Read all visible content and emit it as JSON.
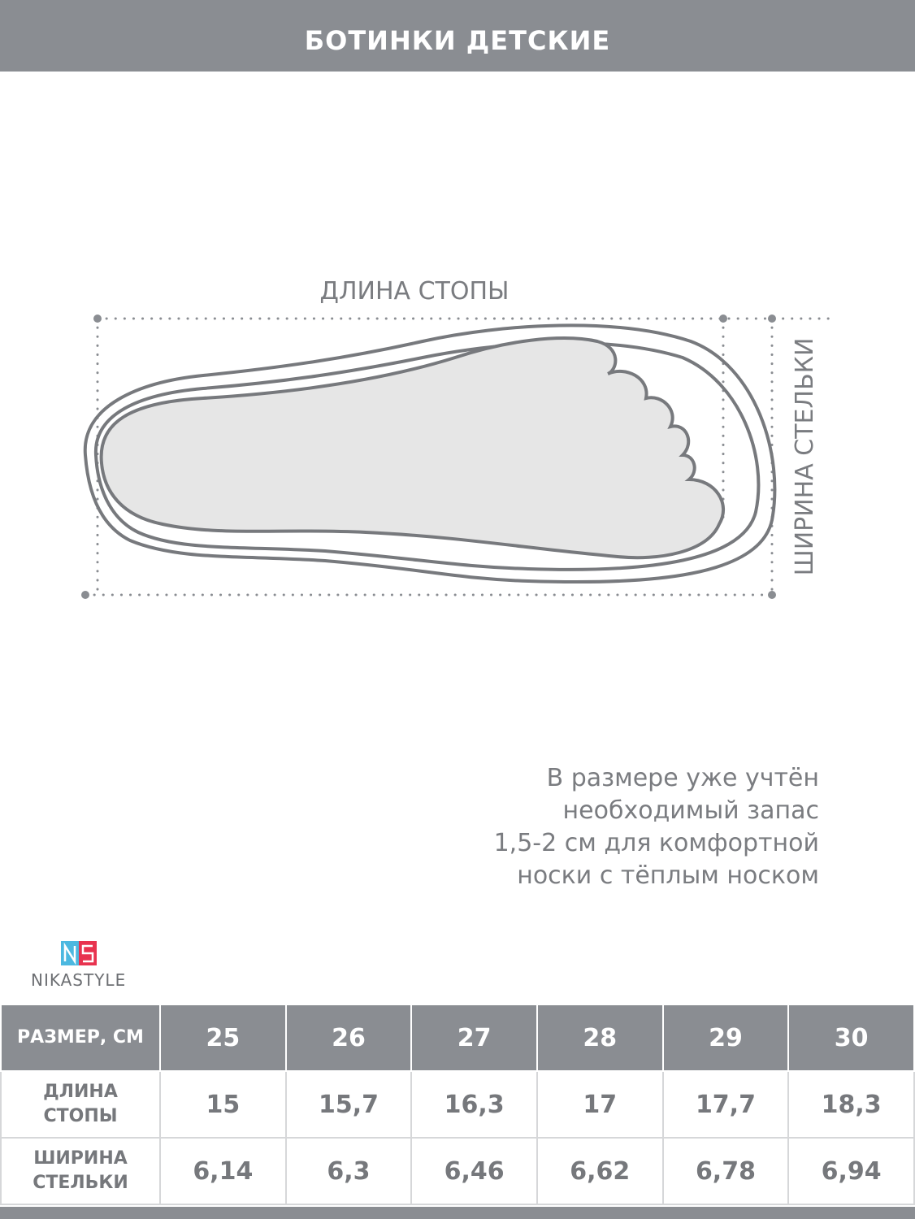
{
  "header": {
    "title": "БОТИНКИ ДЕТСКИЕ"
  },
  "diagram": {
    "length_label": "ДЛИНА СТОПЫ",
    "width_label": "ШИРИНА СТЕЛЬКИ"
  },
  "note": {
    "lines": [
      "В размере уже учтён",
      "необходимый запас",
      "1,5-2 см для комфортной",
      "носки с тёплым носком"
    ]
  },
  "logo": {
    "text": "NIKASTYLE"
  },
  "table": {
    "header": [
      "РАЗМЕР, СМ",
      "25",
      "26",
      "27",
      "28",
      "29",
      "30"
    ],
    "rows": [
      {
        "label": [
          "ДЛИНА",
          "СТОПЫ"
        ],
        "cells": [
          "15",
          "15,7",
          "16,3",
          "17",
          "17,7",
          "18,3"
        ]
      },
      {
        "label": [
          "ШИРИНА",
          "СТЕЛЬКИ"
        ],
        "cells": [
          "6,14",
          "6,3",
          "6,46",
          "6,62",
          "6,78",
          "6,94"
        ]
      }
    ]
  }
}
